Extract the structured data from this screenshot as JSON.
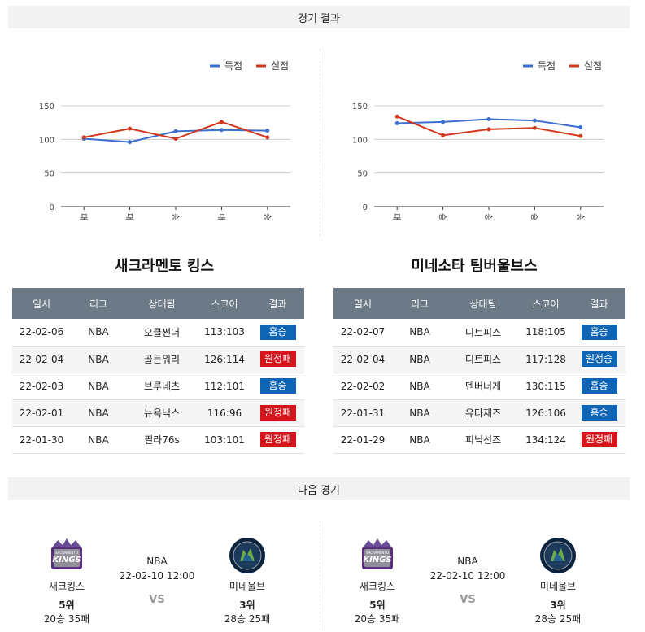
{
  "sections": {
    "results_title": "경기 결과",
    "next_title": "다음 경기"
  },
  "colors": {
    "scored": "#3a6fd0",
    "conceded": "#d2381f",
    "header_bg": "#6b7a86",
    "win_badge": "#0f64b4",
    "lose_badge": "#d5141b"
  },
  "chart_data": [
    {
      "type": "line",
      "categories": [
        "패",
        "패",
        "승",
        "패",
        "승"
      ],
      "series": [
        {
          "name": "득점",
          "values": [
            101,
            96,
            112,
            114,
            113
          ]
        },
        {
          "name": "실점",
          "values": [
            103,
            116,
            101,
            126,
            103
          ]
        }
      ],
      "ylim": [
        0,
        150
      ],
      "yticks": [
        0,
        50,
        100,
        150
      ],
      "legend": "top-right",
      "grid": true
    },
    {
      "type": "line",
      "categories": [
        "패",
        "승",
        "승",
        "승",
        "승"
      ],
      "series": [
        {
          "name": "득점",
          "values": [
            124,
            126,
            130,
            128,
            118
          ]
        },
        {
          "name": "실점",
          "values": [
            134,
            106,
            115,
            117,
            105
          ]
        }
      ],
      "ylim": [
        0,
        150
      ],
      "yticks": [
        0,
        50,
        100,
        150
      ],
      "legend": "top-right",
      "grid": true
    }
  ],
  "headers": [
    "일시",
    "리그",
    "상대팀",
    "스코어",
    "결과"
  ],
  "teams": [
    {
      "name": "새크라멘토 킹스",
      "games": [
        {
          "date": "22-02-06",
          "league": "NBA",
          "opponent": "오클썬더",
          "score": "113:103",
          "result": "홈승",
          "win": true
        },
        {
          "date": "22-02-04",
          "league": "NBA",
          "opponent": "골든워리",
          "score": "126:114",
          "result": "원정패",
          "win": false
        },
        {
          "date": "22-02-03",
          "league": "NBA",
          "opponent": "브루네츠",
          "score": "112:101",
          "result": "홈승",
          "win": true
        },
        {
          "date": "22-02-01",
          "league": "NBA",
          "opponent": "뉴욕닉스",
          "score": "116:96",
          "result": "원정패",
          "win": false
        },
        {
          "date": "22-01-30",
          "league": "NBA",
          "opponent": "필라76s",
          "score": "103:101",
          "result": "원정패",
          "win": false
        }
      ]
    },
    {
      "name": "미네소타 팀버울브스",
      "games": [
        {
          "date": "22-02-07",
          "league": "NBA",
          "opponent": "디트피스",
          "score": "118:105",
          "result": "홈승",
          "win": true
        },
        {
          "date": "22-02-04",
          "league": "NBA",
          "opponent": "디트피스",
          "score": "117:128",
          "result": "원정승",
          "win": true
        },
        {
          "date": "22-02-02",
          "league": "NBA",
          "opponent": "덴버너게",
          "score": "130:115",
          "result": "홈승",
          "win": true
        },
        {
          "date": "22-01-31",
          "league": "NBA",
          "opponent": "유타재즈",
          "score": "126:106",
          "result": "홈승",
          "win": true
        },
        {
          "date": "22-01-29",
          "league": "NBA",
          "opponent": "피닉선즈",
          "score": "134:124",
          "result": "원정패",
          "win": false
        }
      ]
    }
  ],
  "next_games": [
    {
      "home": {
        "name": "새크킹스",
        "rank": "5위",
        "record": "20승 35패",
        "logo_text": "KINGS",
        "logo_sub": "SACRAMENTO"
      },
      "league": "NBA",
      "datetime": "22-02-10 12:00",
      "vs": "VS",
      "away": {
        "name": "미네울브",
        "rank": "3위",
        "record": "28승 25패"
      }
    },
    {
      "home": {
        "name": "새크킹스",
        "rank": "5위",
        "record": "20승 35패",
        "logo_text": "KINGS",
        "logo_sub": "SACRAMENTO"
      },
      "league": "NBA",
      "datetime": "22-02-10 12:00",
      "vs": "VS",
      "away": {
        "name": "미네울브",
        "rank": "3위",
        "record": "28승 25패"
      }
    }
  ]
}
